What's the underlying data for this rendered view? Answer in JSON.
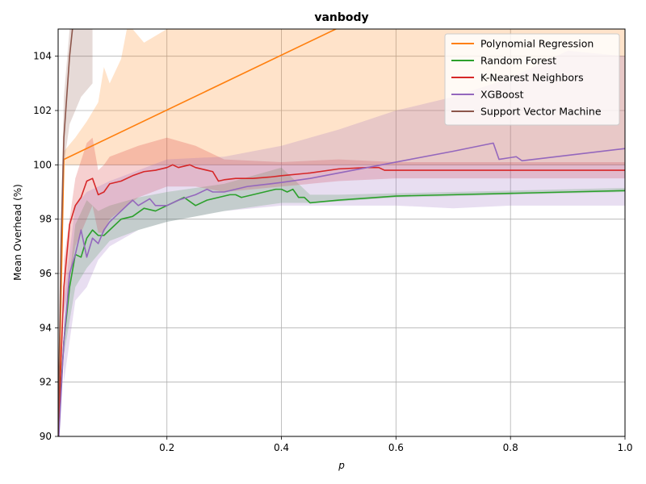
{
  "chart_data": {
    "type": "line",
    "title": "vanbody",
    "xlabel": "p",
    "ylabel": "Mean Overhead (%)",
    "xlim": [
      0.01,
      1.0
    ],
    "ylim": [
      90,
      105
    ],
    "xticks": [
      0.2,
      0.4,
      0.6,
      0.8,
      1.0
    ],
    "xtick_labels": [
      "0.2",
      "0.4",
      "0.6",
      "0.8",
      "1.0"
    ],
    "yticks": [
      90,
      92,
      94,
      96,
      98,
      100,
      102,
      104
    ],
    "ytick_labels": [
      "90",
      "92",
      "94",
      "96",
      "98",
      "100",
      "102",
      "104"
    ],
    "grid": true,
    "legend_position": "top-right",
    "series": [
      {
        "name": "Polynomial Regression",
        "color": "#ff7f0e",
        "x": [
          0.01,
          0.02,
          0.5
        ],
        "y": [
          90,
          100.2,
          105.05
        ],
        "band": {
          "x": [
            0.02,
            0.04,
            0.06,
            0.08,
            0.09,
            0.1,
            0.12,
            0.13,
            0.14,
            0.16,
            0.2,
            0.3,
            0.5,
            1.0
          ],
          "lower": [
            100.0,
            100.0,
            100.0,
            100.0,
            100.0,
            100.0,
            100.0,
            100.0,
            100.0,
            100.0,
            100.0,
            100.0,
            100.0,
            100.0
          ],
          "upper": [
            100.5,
            101.0,
            101.6,
            102.3,
            103.6,
            103.0,
            103.9,
            105.0,
            105.0,
            104.5,
            105.0,
            105.0,
            105.0,
            105.0
          ]
        }
      },
      {
        "name": "Random Forest",
        "color": "#2ca02c",
        "x": [
          0.01,
          0.02,
          0.03,
          0.04,
          0.05,
          0.06,
          0.07,
          0.08,
          0.09,
          0.1,
          0.12,
          0.14,
          0.16,
          0.18,
          0.2,
          0.22,
          0.23,
          0.25,
          0.27,
          0.29,
          0.31,
          0.32,
          0.33,
          0.35,
          0.37,
          0.39,
          0.4,
          0.41,
          0.42,
          0.43,
          0.44,
          0.45,
          0.5,
          0.6,
          0.7,
          0.8,
          0.9,
          1.0
        ],
        "y": [
          90,
          93.5,
          95.5,
          96.7,
          96.6,
          97.3,
          97.6,
          97.4,
          97.4,
          97.6,
          98.0,
          98.1,
          98.4,
          98.3,
          98.5,
          98.7,
          98.8,
          98.5,
          98.7,
          98.8,
          98.9,
          98.9,
          98.8,
          98.9,
          99.0,
          99.1,
          99.1,
          99.0,
          99.1,
          98.8,
          98.8,
          98.6,
          98.7,
          98.85,
          98.9,
          98.95,
          99.0,
          99.05
        ],
        "band": {
          "x": [
            0.02,
            0.04,
            0.06,
            0.08,
            0.1,
            0.15,
            0.2,
            0.3,
            0.4,
            0.45,
            0.5,
            0.6,
            0.8,
            1.0
          ],
          "lower": [
            93.0,
            95.5,
            96.2,
            96.7,
            97.2,
            97.6,
            97.9,
            98.3,
            98.6,
            98.6,
            98.65,
            98.8,
            98.9,
            99.0
          ],
          "upper": [
            94.0,
            97.8,
            98.7,
            98.3,
            98.5,
            98.8,
            99.0,
            99.3,
            99.9,
            98.9,
            98.9,
            98.95,
            99.05,
            99.15
          ]
        }
      },
      {
        "name": "K-Nearest Neighbors",
        "color": "#d62728",
        "x": [
          0.01,
          0.02,
          0.03,
          0.04,
          0.05,
          0.06,
          0.07,
          0.08,
          0.09,
          0.1,
          0.12,
          0.14,
          0.16,
          0.18,
          0.2,
          0.21,
          0.22,
          0.24,
          0.25,
          0.27,
          0.28,
          0.29,
          0.3,
          0.32,
          0.35,
          0.38,
          0.4,
          0.45,
          0.5,
          0.55,
          0.57,
          0.58,
          0.6,
          0.8,
          1.0
        ],
        "y": [
          90,
          95.5,
          97.8,
          98.5,
          98.8,
          99.4,
          99.5,
          98.9,
          99.0,
          99.3,
          99.4,
          99.6,
          99.75,
          99.8,
          99.9,
          100.0,
          99.9,
          100.0,
          99.9,
          99.8,
          99.75,
          99.4,
          99.45,
          99.5,
          99.5,
          99.55,
          99.6,
          99.7,
          99.85,
          99.9,
          99.9,
          99.8,
          99.8,
          99.8,
          99.8
        ],
        "band": {
          "x": [
            0.02,
            0.04,
            0.06,
            0.07,
            0.08,
            0.09,
            0.1,
            0.15,
            0.2,
            0.25,
            0.3,
            0.4,
            0.5,
            0.6,
            1.0
          ],
          "lower": [
            94.5,
            97.0,
            98.0,
            98.5,
            97.5,
            97.5,
            98.0,
            98.8,
            99.2,
            99.2,
            99.0,
            99.2,
            99.4,
            99.5,
            99.5
          ],
          "upper": [
            96.5,
            99.5,
            100.8,
            101.0,
            99.8,
            100.0,
            100.3,
            100.7,
            101.0,
            100.7,
            100.2,
            100.1,
            100.2,
            100.1,
            100.1
          ]
        }
      },
      {
        "name": "XGBoost",
        "color": "#9467bd",
        "x": [
          0.01,
          0.02,
          0.03,
          0.04,
          0.05,
          0.06,
          0.07,
          0.08,
          0.09,
          0.1,
          0.12,
          0.14,
          0.15,
          0.17,
          0.18,
          0.2,
          0.22,
          0.25,
          0.27,
          0.28,
          0.3,
          0.32,
          0.34,
          0.36,
          0.38,
          0.4,
          0.45,
          0.5,
          0.55,
          0.6,
          0.7,
          0.77,
          0.78,
          0.81,
          0.82,
          0.9,
          1.0
        ],
        "y": [
          89.5,
          93.5,
          96.0,
          96.7,
          97.6,
          96.6,
          97.3,
          97.1,
          97.6,
          97.9,
          98.3,
          98.7,
          98.5,
          98.75,
          98.5,
          98.5,
          98.7,
          98.9,
          99.1,
          99.0,
          99.0,
          99.1,
          99.2,
          99.25,
          99.3,
          99.35,
          99.5,
          99.7,
          99.9,
          100.1,
          100.5,
          100.8,
          100.2,
          100.3,
          100.15,
          100.35,
          100.6
        ],
        "band": {
          "x": [
            0.02,
            0.04,
            0.06,
            0.08,
            0.1,
            0.15,
            0.2,
            0.3,
            0.4,
            0.5,
            0.6,
            0.7,
            0.8,
            0.9,
            1.0
          ],
          "lower": [
            92.0,
            95.0,
            95.5,
            96.5,
            97.0,
            97.6,
            97.9,
            98.3,
            98.5,
            98.5,
            98.5,
            98.4,
            98.5,
            98.5,
            98.5
          ],
          "upper": [
            95.0,
            98.5,
            99.0,
            99.2,
            99.4,
            99.8,
            100.2,
            100.3,
            100.7,
            101.3,
            102.0,
            102.5,
            103.2,
            104.2,
            104.0
          ]
        }
      },
      {
        "name": "Support Vector Machine",
        "color": "#8c564b",
        "x": [
          0.01,
          0.015,
          0.02,
          0.03,
          0.035,
          0.04
        ],
        "y": [
          90,
          97.0,
          101.0,
          104.0,
          105.0,
          105.1
        ],
        "band": {
          "x": [
            0.01,
            0.015,
            0.02,
            0.03,
            0.04,
            0.05,
            0.07
          ],
          "lower": [
            90.0,
            96.0,
            100.0,
            101.5,
            102.0,
            102.5,
            103.0
          ],
          "upper": [
            91.0,
            98.0,
            102.5,
            105.0,
            105.0,
            105.0,
            105.0
          ]
        }
      }
    ]
  }
}
